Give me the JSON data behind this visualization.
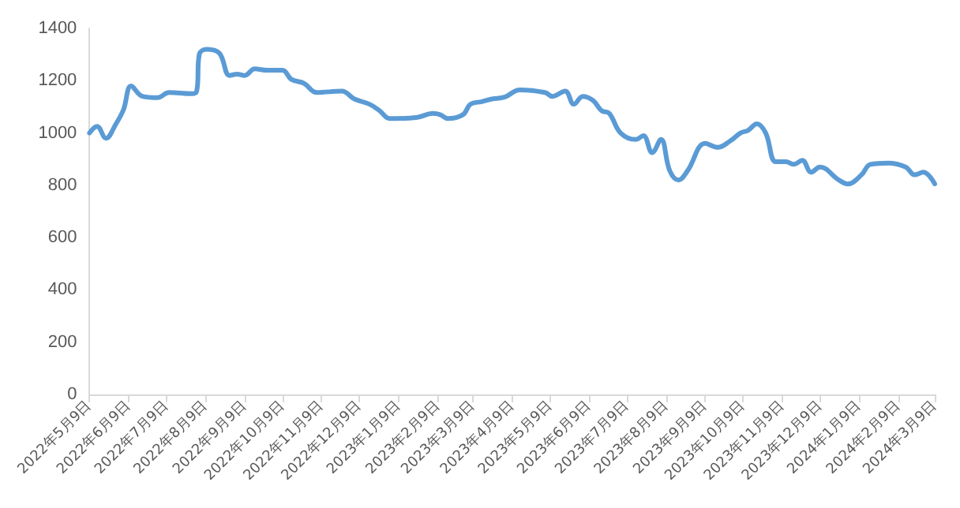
{
  "chart_data": {
    "type": "line",
    "xlim": [
      "2022-05-09",
      "2024-03-09"
    ],
    "xticks": [
      {
        "value": "2022-05-09",
        "label": "2022年5月9日"
      },
      {
        "value": "2022-06-09",
        "label": "2022年6月9日"
      },
      {
        "value": "2022-07-09",
        "label": "2022年7月9日"
      },
      {
        "value": "2022-08-09",
        "label": "2022年8月9日"
      },
      {
        "value": "2022-09-09",
        "label": "2022年9月9日"
      },
      {
        "value": "2022-10-09",
        "label": "2022年10月9日"
      },
      {
        "value": "2022-11-09",
        "label": "2022年11月9日"
      },
      {
        "value": "2022-12-09",
        "label": "2022年12月9日"
      },
      {
        "value": "2023-01-09",
        "label": "2023年1月9日"
      },
      {
        "value": "2023-02-09",
        "label": "2023年2月9日"
      },
      {
        "value": "2023-03-09",
        "label": "2023年3月9日"
      },
      {
        "value": "2023-04-09",
        "label": "2023年4月9日"
      },
      {
        "value": "2023-05-09",
        "label": "2023年5月9日"
      },
      {
        "value": "2023-06-09",
        "label": "2023年6月9日"
      },
      {
        "value": "2023-07-09",
        "label": "2023年7月9日"
      },
      {
        "value": "2023-08-09",
        "label": "2023年8月9日"
      },
      {
        "value": "2023-09-09",
        "label": "2023年9月9日"
      },
      {
        "value": "2023-10-09",
        "label": "2023年10月9日"
      },
      {
        "value": "2023-11-09",
        "label": "2023年11月9日"
      },
      {
        "value": "2023-12-09",
        "label": "2023年12月9日"
      },
      {
        "value": "2024-01-09",
        "label": "2024年1月9日"
      },
      {
        "value": "2024-02-09",
        "label": "2024年2月9日"
      },
      {
        "value": "2024-03-09",
        "label": "2024年3月9日"
      }
    ],
    "ylim": [
      0,
      1400
    ],
    "yticks": [
      0,
      200,
      400,
      600,
      800,
      1000,
      1200,
      1400
    ],
    "grid": false,
    "marker": "none",
    "line_style": "solid",
    "series": [
      {
        "color": "#5b9bd5",
        "x": [
          "2022-05-09",
          "2022-05-15",
          "2022-05-22",
          "2022-05-30",
          "2022-06-05",
          "2022-06-11",
          "2022-06-20",
          "2022-07-02",
          "2022-07-11",
          "2022-07-29",
          "2022-08-02",
          "2022-08-04",
          "2022-08-10",
          "2022-08-20",
          "2022-08-28",
          "2022-09-03",
          "2022-09-09",
          "2022-09-17",
          "2022-09-27",
          "2022-10-09",
          "2022-10-16",
          "2022-10-26",
          "2022-11-05",
          "2022-11-25",
          "2022-12-05",
          "2022-12-17",
          "2022-12-25",
          "2023-01-02",
          "2023-01-24",
          "2023-02-05",
          "2023-02-11",
          "2023-02-17",
          "2023-03-01",
          "2023-03-07",
          "2023-03-16",
          "2023-03-24",
          "2023-04-03",
          "2023-04-15",
          "2023-05-05",
          "2023-05-11",
          "2023-05-21",
          "2023-05-28",
          "2023-06-04",
          "2023-06-12",
          "2023-06-19",
          "2023-06-25",
          "2023-07-04",
          "2023-07-16",
          "2023-07-22",
          "2023-07-29",
          "2023-08-05",
          "2023-08-12",
          "2023-08-19",
          "2023-08-26",
          "2023-09-09",
          "2023-09-19",
          "2023-09-29",
          "2023-10-07",
          "2023-10-13",
          "2023-10-20",
          "2023-10-27",
          "2023-11-04",
          "2023-11-12",
          "2023-11-18",
          "2023-11-25",
          "2023-12-02",
          "2023-12-09",
          "2023-12-24",
          "2023-12-31",
          "2024-01-11",
          "2024-01-18",
          "2024-02-01",
          "2024-02-15",
          "2024-02-22",
          "2024-02-29",
          "2024-03-09"
        ],
        "values": [
          1000,
          1025,
          980,
          1035,
          1090,
          1180,
          1140,
          1135,
          1155,
          1150,
          1160,
          1300,
          1320,
          1305,
          1220,
          1225,
          1220,
          1245,
          1240,
          1240,
          1205,
          1190,
          1155,
          1160,
          1130,
          1110,
          1085,
          1055,
          1060,
          1075,
          1070,
          1055,
          1070,
          1110,
          1120,
          1130,
          1137,
          1165,
          1155,
          1140,
          1160,
          1110,
          1140,
          1125,
          1085,
          1075,
          1000,
          975,
          990,
          925,
          975,
          855,
          820,
          855,
          960,
          945,
          970,
          1000,
          1010,
          1035,
          1000,
          890,
          890,
          880,
          895,
          850,
          870,
          820,
          805,
          840,
          880,
          885,
          870,
          840,
          850,
          805
        ]
      }
    ]
  }
}
